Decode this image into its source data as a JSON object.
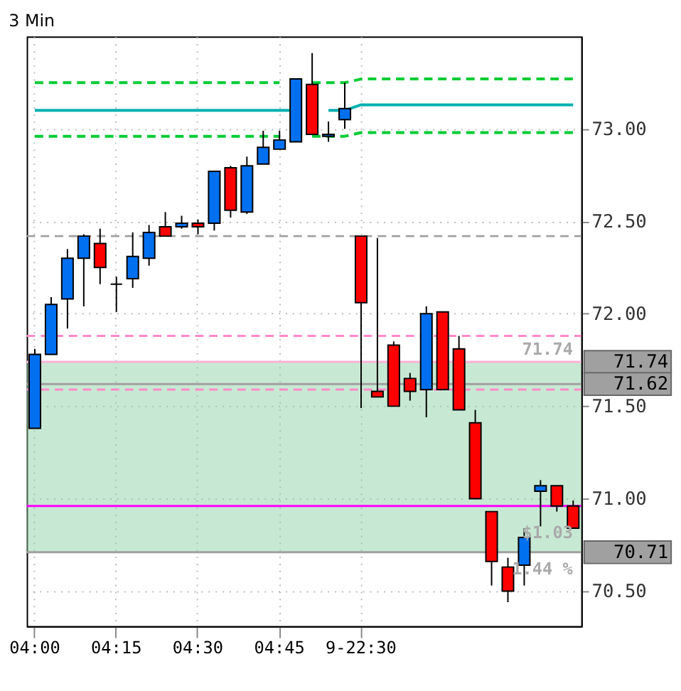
{
  "chart_data": {
    "type": "candlestick",
    "title": "3 Min",
    "categories": [
      "04:00",
      null,
      null,
      null,
      null,
      "04:15",
      null,
      null,
      null,
      null,
      "04:30",
      null,
      null,
      null,
      null,
      "04:45",
      null,
      null,
      null,
      null,
      "9-22:30",
      null,
      null,
      null,
      null,
      null,
      null,
      null,
      null,
      null,
      null,
      null,
      null,
      null
    ],
    "ohlc": [
      [
        71.38,
        71.81,
        71.38,
        71.78
      ],
      [
        71.78,
        72.09,
        71.78,
        72.05
      ],
      [
        72.08,
        72.35,
        71.92,
        72.3
      ],
      [
        72.3,
        72.43,
        72.04,
        72.42
      ],
      [
        72.38,
        72.46,
        72.16,
        72.25
      ],
      [
        72.16,
        72.2,
        72.01,
        72.16
      ],
      [
        72.19,
        72.44,
        72.14,
        72.31
      ],
      [
        72.3,
        72.48,
        72.26,
        72.44
      ],
      [
        72.47,
        72.55,
        72.42,
        72.42
      ],
      [
        72.47,
        72.53,
        72.46,
        72.49
      ],
      [
        72.49,
        72.51,
        72.43,
        72.47
      ],
      [
        72.49,
        72.77,
        72.45,
        72.77
      ],
      [
        72.79,
        72.8,
        72.52,
        72.56
      ],
      [
        72.55,
        72.85,
        72.54,
        72.8
      ],
      [
        72.81,
        72.99,
        72.81,
        72.9
      ],
      [
        72.89,
        72.99,
        72.89,
        72.94
      ],
      [
        72.93,
        73.27,
        72.93,
        73.27
      ],
      [
        73.24,
        73.41,
        72.97,
        72.97
      ],
      [
        72.96,
        73.04,
        72.93,
        72.97
      ],
      [
        73.05,
        73.25,
        73.0,
        73.11
      ],
      [
        72.42,
        72.42,
        71.49,
        72.06
      ],
      [
        71.58,
        72.41,
        71.55,
        71.55
      ],
      [
        71.83,
        71.85,
        71.5,
        71.5
      ],
      [
        71.65,
        71.68,
        71.53,
        71.58
      ],
      [
        71.59,
        72.04,
        71.44,
        72.0
      ],
      [
        72.01,
        72.01,
        71.59,
        71.59
      ],
      [
        71.81,
        71.88,
        71.48,
        71.48
      ],
      [
        71.41,
        71.48,
        71.0,
        71.0
      ],
      [
        70.93,
        70.93,
        70.53,
        70.66
      ],
      [
        70.63,
        70.68,
        70.44,
        70.5
      ],
      [
        70.64,
        70.84,
        70.53,
        70.79
      ],
      [
        71.04,
        71.1,
        70.85,
        71.07
      ],
      [
        71.07,
        71.07,
        70.93,
        70.96
      ],
      [
        70.96,
        70.99,
        70.84,
        70.84
      ]
    ],
    "colors": [
      "#0070f0",
      "#0070f0",
      "#0070f0",
      "#0070f0",
      "#ff0000",
      "#000000",
      "#0070f0",
      "#0070f0",
      "#ff0000",
      "#0070f0",
      "#ff0000",
      "#0070f0",
      "#ff0000",
      "#0070f0",
      "#0070f0",
      "#0070f0",
      "#0070f0",
      "#ff0000",
      "#0070f0",
      "#0070f0",
      "#ff0000",
      "#ff0000",
      "#ff0000",
      "#ff0000",
      "#0070f0",
      "#ff0000",
      "#ff0000",
      "#ff0000",
      "#ff0000",
      "#ff0000",
      "#0070f0",
      "#0070f0",
      "#ff0000",
      "#ff0000"
    ],
    "series": [
      {
        "type": "line",
        "color": "#00b0b0",
        "line_style": "solid",
        "values": [
          73.1,
          73.1,
          73.1,
          73.1,
          73.1,
          73.1,
          73.1,
          73.1,
          73.1,
          73.1,
          73.1,
          73.1,
          73.1,
          73.1,
          73.1,
          73.1,
          73.1,
          null,
          73.1,
          73.1,
          73.13,
          73.13,
          73.13,
          73.13,
          73.13,
          73.13,
          73.13,
          73.13,
          73.13,
          73.13,
          73.13,
          73.13,
          73.13,
          73.13
        ]
      },
      {
        "type": "line",
        "color": "#00cc33",
        "line_style": "dashed",
        "values": [
          73.25,
          73.25,
          73.25,
          73.25,
          73.25,
          73.25,
          73.25,
          73.25,
          73.25,
          73.25,
          73.25,
          73.25,
          73.25,
          73.25,
          73.25,
          73.25,
          null,
          73.25,
          73.25,
          73.25,
          73.27,
          73.27,
          73.27,
          73.27,
          73.27,
          73.27,
          73.27,
          73.27,
          73.27,
          73.27,
          73.27,
          73.27,
          73.27,
          73.27
        ]
      },
      {
        "type": "line",
        "color": "#00cc33",
        "line_style": "dashed",
        "values": [
          72.96,
          72.96,
          72.96,
          72.96,
          72.96,
          72.96,
          72.96,
          72.96,
          72.96,
          72.96,
          72.96,
          72.96,
          72.96,
          72.96,
          72.96,
          72.96,
          null,
          72.96,
          72.96,
          72.96,
          72.98,
          72.98,
          72.98,
          72.98,
          72.98,
          72.98,
          72.98,
          72.98,
          72.98,
          72.98,
          72.98,
          72.98,
          72.98,
          72.98
        ]
      }
    ],
    "ylim": [
      70.31,
      73.5
    ],
    "yticks": [
      {
        "value": 70.5,
        "label": "70.50"
      },
      {
        "value": 71,
        "label": "71.00"
      },
      {
        "value": 71.5,
        "label": "71.50"
      },
      {
        "value": 72,
        "label": "72.00"
      },
      {
        "value": 72.5,
        "label": "72.50"
      },
      {
        "value": 73,
        "label": "73.00"
      }
    ],
    "ref_lines": [
      {
        "axis": "y",
        "value": 72.42,
        "color": "#a0a0a0",
        "line_style": "dashed"
      },
      {
        "axis": "y",
        "value": 71.88,
        "color": "#ff88c8",
        "line_style": "dashed"
      },
      {
        "axis": "y",
        "value": 71.59,
        "color": "#ff88c8",
        "line_style": "dashed"
      },
      {
        "axis": "y",
        "value": 71.74,
        "label": "71.74",
        "color": "#ffb0d8",
        "line_style": "solid"
      },
      {
        "axis": "y",
        "value": 70.96,
        "color": "#ff00ff",
        "line_style": "solid"
      },
      {
        "axis": "y",
        "value": 71.62,
        "label": "71.62",
        "color": "#a0a0a0",
        "line_style": "solid"
      },
      {
        "axis": "y",
        "value": 70.71,
        "label": "70.71",
        "color": "#a0a0a0",
        "line_style": "solid"
      }
    ],
    "bands": [
      {
        "axis": "y",
        "from": 70.71,
        "to": 71.74,
        "color": "#8fd3a8"
      }
    ],
    "annotations": [
      "71.74",
      "$1.03",
      "1.44 %"
    ],
    "grid": true
  }
}
